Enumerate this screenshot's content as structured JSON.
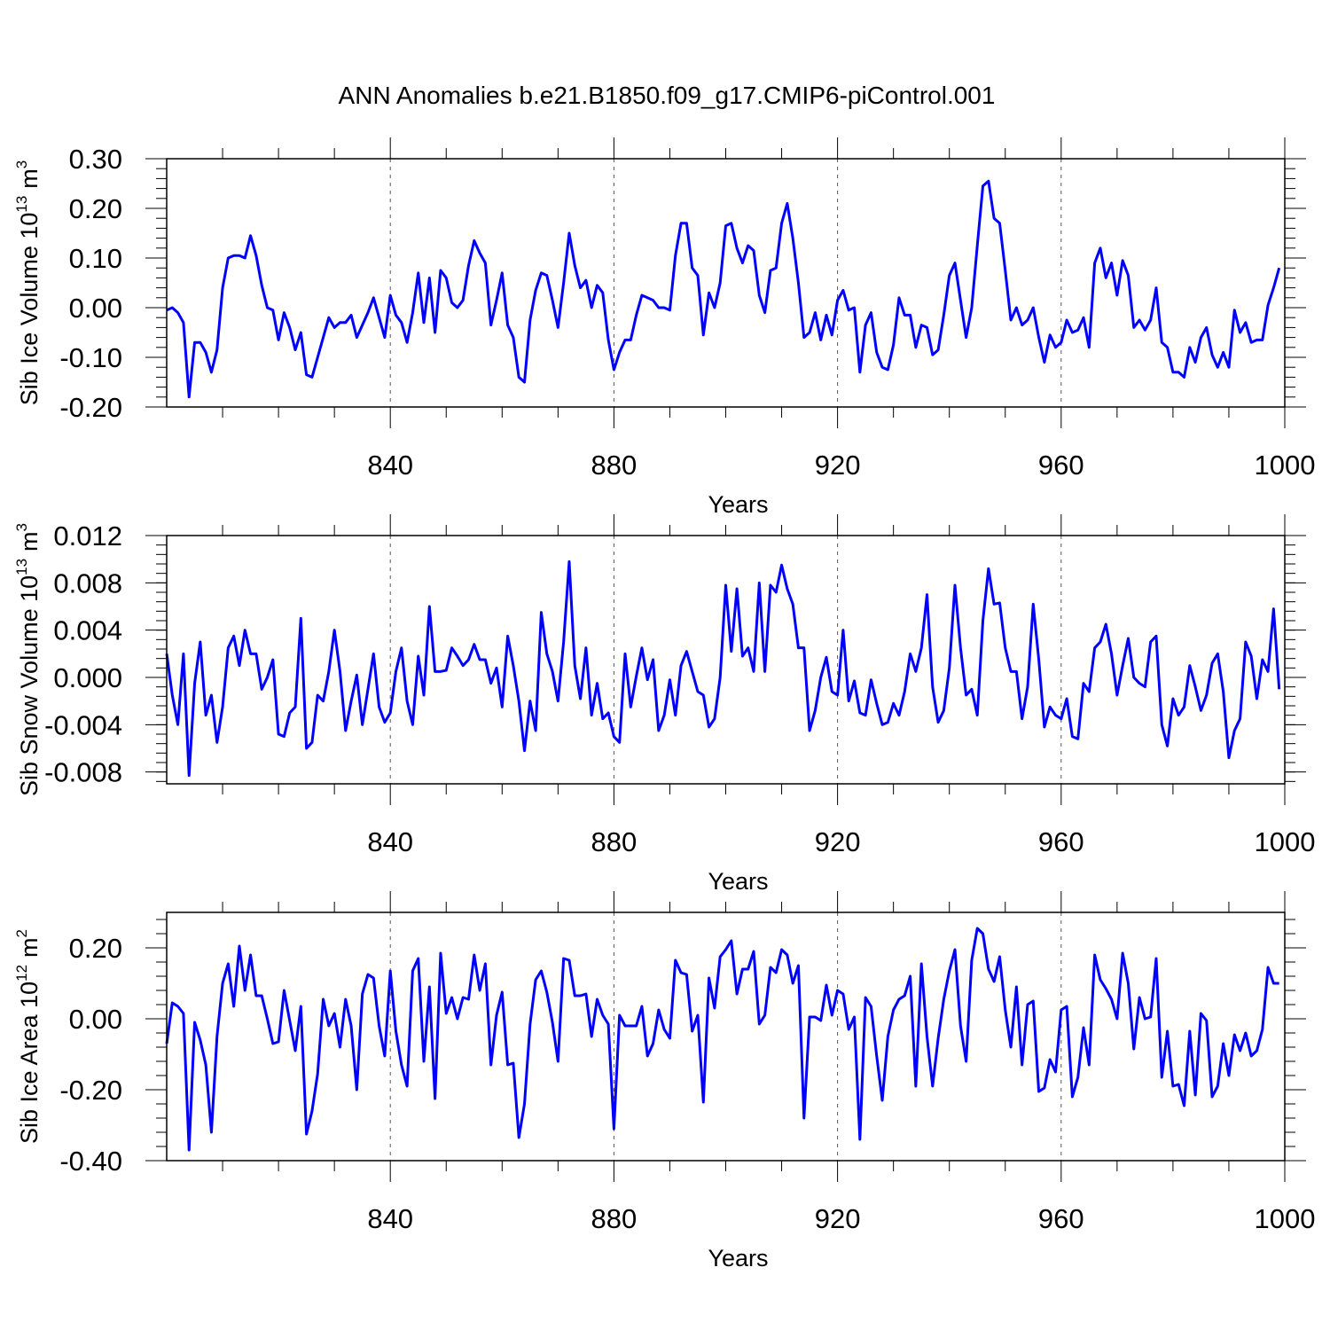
{
  "title": "ANN Anomalies b.e21.B1850.f09_g17.CMIP6-piControl.001",
  "line_color": "#0000ff",
  "chart_data": [
    {
      "type": "line",
      "xlabel": "Years",
      "ylabel_main": "Sib Ice Volume 10",
      "ylabel_exp": "13",
      "ylabel_unit": "m",
      "ylabel_unit_exp": "3",
      "xlim": [
        800,
        1000
      ],
      "ylim": [
        -0.2,
        0.3
      ],
      "x_ticks": [
        840,
        880,
        920,
        960,
        1000
      ],
      "y_ticks": [
        -0.2,
        -0.1,
        0.0,
        0.1,
        0.2,
        0.3
      ],
      "y_tick_labels": [
        "-0.20",
        "-0.10",
        "0.00",
        "0.10",
        "0.20",
        "0.30"
      ],
      "x_start": 800,
      "values": [
        -0.005,
        0.0,
        -0.01,
        -0.03,
        -0.18,
        -0.07,
        -0.07,
        -0.09,
        -0.13,
        -0.085,
        0.04,
        0.1,
        0.105,
        0.105,
        0.1,
        0.145,
        0.105,
        0.045,
        0.0,
        -0.005,
        -0.065,
        -0.01,
        -0.04,
        -0.085,
        -0.05,
        -0.135,
        -0.14,
        -0.1,
        -0.06,
        -0.02,
        -0.04,
        -0.03,
        -0.03,
        -0.015,
        -0.06,
        -0.035,
        -0.01,
        0.02,
        -0.02,
        -0.06,
        0.025,
        -0.015,
        -0.03,
        -0.07,
        -0.01,
        0.07,
        -0.03,
        0.06,
        -0.05,
        0.075,
        0.06,
        0.01,
        0.0,
        0.015,
        0.085,
        0.135,
        0.11,
        0.09,
        -0.035,
        0.015,
        0.07,
        -0.035,
        -0.06,
        -0.14,
        -0.15,
        -0.025,
        0.035,
        0.07,
        0.065,
        0.015,
        -0.04,
        0.05,
        0.15,
        0.085,
        0.04,
        0.055,
        0.0,
        0.045,
        0.03,
        -0.065,
        -0.125,
        -0.09,
        -0.065,
        -0.065,
        -0.015,
        0.025,
        0.02,
        0.015,
        0.0,
        0.0,
        -0.005,
        0.105,
        0.17,
        0.17,
        0.08,
        0.065,
        -0.055,
        0.03,
        0.0,
        0.05,
        0.165,
        0.17,
        0.12,
        0.09,
        0.125,
        0.115,
        0.025,
        -0.01,
        0.075,
        0.08,
        0.17,
        0.21,
        0.14,
        0.05,
        -0.06,
        -0.05,
        -0.01,
        -0.065,
        -0.015,
        -0.055,
        0.015,
        0.035,
        -0.005,
        0.0,
        -0.13,
        -0.035,
        -0.01,
        -0.09,
        -0.12,
        -0.125,
        -0.075,
        0.02,
        -0.015,
        -0.015,
        -0.08,
        -0.035,
        -0.04,
        -0.095,
        -0.085,
        -0.015,
        0.065,
        0.09,
        0.015,
        -0.06,
        0.0,
        0.125,
        0.245,
        0.255,
        0.18,
        0.17,
        0.075,
        -0.025,
        0.0,
        -0.035,
        -0.025,
        0.0,
        -0.06,
        -0.11,
        -0.055,
        -0.08,
        -0.07,
        -0.025,
        -0.05,
        -0.045,
        -0.02,
        -0.08,
        0.09,
        0.12,
        0.06,
        0.09,
        0.025,
        0.095,
        0.065,
        -0.04,
        -0.025,
        -0.045,
        -0.025,
        0.04,
        -0.07,
        -0.08,
        -0.13,
        -0.13,
        -0.14,
        -0.08,
        -0.11,
        -0.06,
        -0.04,
        -0.095,
        -0.12,
        -0.09,
        -0.12,
        -0.005,
        -0.05,
        -0.03,
        -0.07,
        -0.065,
        -0.065,
        0.005,
        0.04,
        0.08
      ]
    },
    {
      "type": "line",
      "xlabel": "Years",
      "ylabel_main": "Sib Snow Volume 10",
      "ylabel_exp": "13",
      "ylabel_unit": "m",
      "ylabel_unit_exp": "3",
      "xlim": [
        800,
        1000
      ],
      "ylim": [
        -0.009,
        0.012
      ],
      "x_ticks": [
        840,
        880,
        920,
        960,
        1000
      ],
      "y_ticks": [
        -0.008,
        -0.004,
        0.0,
        0.004,
        0.008,
        0.012
      ],
      "y_tick_labels": [
        "-0.008",
        "-0.004",
        "0.000",
        "0.004",
        "0.008",
        "0.012"
      ],
      "x_start": 800,
      "values": [
        0.002,
        -0.0015,
        -0.004,
        0.002,
        -0.0083,
        -0.0005,
        0.003,
        -0.0032,
        -0.0015,
        -0.0055,
        -0.0025,
        0.0025,
        0.0035,
        0.001,
        0.004,
        0.002,
        0.002,
        -0.001,
        0.0,
        0.0015,
        -0.0048,
        -0.005,
        -0.003,
        -0.0025,
        0.005,
        -0.006,
        -0.0055,
        -0.0015,
        -0.002,
        0.0005,
        0.004,
        0.0005,
        -0.0045,
        -0.002,
        0.0002,
        -0.004,
        -0.001,
        0.002,
        -0.0025,
        -0.0038,
        -0.003,
        0.0005,
        0.0025,
        -0.002,
        -0.004,
        0.0018,
        -0.0015,
        0.006,
        0.0005,
        0.0005,
        0.0006,
        0.0025,
        0.0018,
        0.001,
        0.0015,
        0.0028,
        0.0015,
        0.0015,
        -0.0005,
        0.0008,
        -0.0025,
        0.0035,
        0.001,
        -0.002,
        -0.0062,
        -0.002,
        -0.0045,
        0.0055,
        0.002,
        0.0005,
        -0.002,
        0.003,
        0.0098,
        0.001,
        -0.0018,
        0.0025,
        -0.0032,
        -0.0005,
        -0.0035,
        -0.003,
        -0.005,
        -0.0055,
        0.002,
        -0.0025,
        0.0001,
        0.0025,
        -0.0002,
        0.0015,
        -0.0045,
        -0.0032,
        -0.0002,
        -0.0032,
        0.001,
        0.0022,
        0.0005,
        -0.0012,
        -0.0015,
        -0.0042,
        -0.0035,
        0.0,
        0.0078,
        0.0022,
        0.0075,
        0.0018,
        0.0025,
        0.0005,
        0.008,
        0.0005,
        0.0078,
        0.0072,
        0.0095,
        0.0075,
        0.0062,
        0.0025,
        0.0025,
        -0.0045,
        -0.0028,
        0.0,
        0.0017,
        -0.0012,
        -0.0015,
        0.004,
        -0.002,
        -0.0003,
        -0.003,
        -0.0032,
        -0.0002,
        -0.0022,
        -0.004,
        -0.0038,
        -0.0022,
        -0.0032,
        -0.0012,
        0.002,
        0.0005,
        0.0025,
        0.007,
        -0.0008,
        -0.0038,
        -0.0028,
        0.0008,
        0.0078,
        0.0025,
        -0.0015,
        -0.001,
        -0.0032,
        0.0048,
        0.0092,
        0.0062,
        0.0063,
        0.0025,
        0.0005,
        0.0005,
        -0.0035,
        -0.0008,
        0.0062,
        0.0015,
        -0.0042,
        -0.0025,
        -0.0032,
        -0.0035,
        -0.0018,
        -0.005,
        -0.0052,
        -0.0005,
        -0.0012,
        0.0025,
        0.003,
        0.0045,
        0.002,
        -0.0015,
        0.001,
        0.0033,
        0.0,
        -0.0005,
        -0.0008,
        0.003,
        0.0035,
        -0.004,
        -0.0058,
        -0.0018,
        -0.0032,
        -0.0025,
        0.001,
        -0.0008,
        -0.0028,
        -0.0015,
        0.0012,
        0.002,
        -0.0012,
        -0.0068,
        -0.0045,
        -0.0035,
        0.003,
        0.0018,
        -0.0018,
        0.0015,
        0.0005,
        0.0058,
        -0.001
      ]
    },
    {
      "type": "line",
      "xlabel": "Years",
      "ylabel_main": "Sib Ice Area 10",
      "ylabel_exp": "12",
      "ylabel_unit": "m",
      "ylabel_unit_exp": "2",
      "xlim": [
        800,
        1000
      ],
      "ylim": [
        -0.4,
        0.3
      ],
      "x_ticks": [
        840,
        880,
        920,
        960,
        1000
      ],
      "y_ticks": [
        -0.4,
        -0.2,
        0.0,
        0.2
      ],
      "y_tick_labels": [
        "-0.40",
        "-0.20",
        "0.00",
        "0.20"
      ],
      "x_start": 800,
      "values": [
        -0.07,
        0.045,
        0.035,
        0.015,
        -0.37,
        -0.01,
        -0.06,
        -0.13,
        -0.32,
        -0.05,
        0.1,
        0.155,
        0.035,
        0.205,
        0.08,
        0.18,
        0.065,
        0.065,
        0.0,
        -0.07,
        -0.065,
        0.08,
        -0.005,
        -0.09,
        0.035,
        -0.325,
        -0.26,
        -0.155,
        0.055,
        -0.02,
        0.015,
        -0.08,
        0.055,
        -0.02,
        -0.2,
        0.07,
        0.125,
        0.115,
        -0.02,
        -0.105,
        0.135,
        -0.035,
        -0.13,
        -0.19,
        0.135,
        0.17,
        -0.12,
        0.09,
        -0.225,
        0.185,
        0.015,
        0.06,
        0.0,
        0.06,
        0.055,
        0.18,
        0.08,
        0.155,
        -0.13,
        0.01,
        0.075,
        -0.13,
        -0.125,
        -0.335,
        -0.24,
        -0.015,
        0.11,
        0.135,
        0.075,
        -0.01,
        -0.12,
        0.17,
        0.165,
        0.065,
        0.065,
        0.07,
        -0.05,
        0.055,
        0.01,
        -0.015,
        -0.31,
        0.01,
        -0.02,
        -0.02,
        -0.02,
        0.035,
        -0.105,
        -0.07,
        0.025,
        -0.03,
        -0.055,
        0.165,
        0.13,
        0.125,
        -0.035,
        0.01,
        -0.235,
        0.115,
        0.03,
        0.175,
        0.195,
        0.22,
        0.07,
        0.14,
        0.14,
        0.19,
        -0.015,
        0.01,
        0.145,
        0.13,
        0.195,
        0.18,
        0.1,
        0.15,
        -0.28,
        0.005,
        0.005,
        -0.005,
        0.095,
        0.01,
        0.08,
        0.07,
        -0.03,
        0.005,
        -0.34,
        0.06,
        0.035,
        -0.105,
        -0.23,
        -0.05,
        0.025,
        0.055,
        0.065,
        0.12,
        -0.19,
        0.155,
        -0.05,
        -0.19,
        -0.055,
        0.055,
        0.135,
        0.195,
        -0.02,
        -0.12,
        0.165,
        0.255,
        0.24,
        0.14,
        0.105,
        0.175,
        0.025,
        -0.08,
        0.09,
        -0.13,
        0.04,
        0.05,
        -0.205,
        -0.195,
        -0.115,
        -0.15,
        0.025,
        0.035,
        -0.22,
        -0.165,
        -0.025,
        -0.13,
        0.18,
        0.11,
        0.085,
        0.055,
        0.0,
        0.185,
        0.1,
        -0.085,
        0.06,
        0.0,
        0.005,
        0.17,
        -0.165,
        -0.035,
        -0.19,
        -0.185,
        -0.245,
        -0.035,
        -0.215,
        0.015,
        -0.005,
        -0.22,
        -0.19,
        -0.07,
        -0.16,
        -0.045,
        -0.09,
        -0.04,
        -0.105,
        -0.09,
        -0.03,
        0.145,
        0.1,
        0.1
      ]
    }
  ]
}
